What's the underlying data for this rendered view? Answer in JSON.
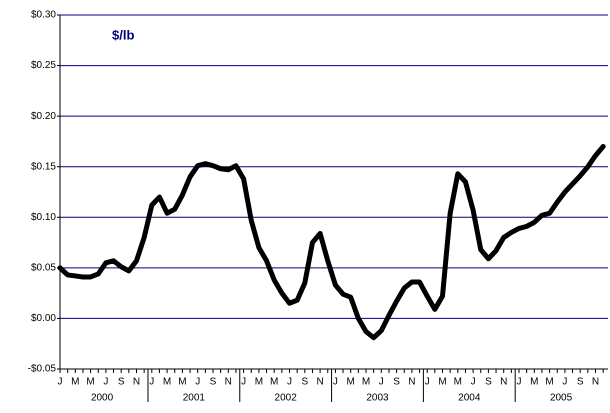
{
  "chart_data": {
    "type": "line",
    "annotation": "$/lb",
    "categories": [
      "J",
      null,
      "M",
      null,
      "M",
      null,
      "J",
      null,
      "S",
      null,
      "N",
      null,
      "J",
      null,
      "M",
      null,
      "M",
      null,
      "J",
      null,
      "S",
      null,
      "N",
      null,
      "J",
      null,
      "M",
      null,
      "M",
      null,
      "J",
      null,
      "S",
      null,
      "N",
      null,
      "J",
      null,
      "M",
      null,
      "M",
      null,
      "J",
      null,
      "S",
      null,
      "N",
      null,
      "J",
      null,
      "M",
      null,
      "M",
      null,
      "J",
      null,
      "S",
      null,
      "N",
      null,
      "J",
      null,
      "M",
      null,
      "M",
      null,
      "J",
      null,
      "S",
      null,
      "N",
      null
    ],
    "years": [
      "2000",
      "2001",
      "2002",
      "2003",
      "2004",
      "2005"
    ],
    "series": [
      {
        "color": "#000000",
        "values": [
          0.05,
          0.043,
          0.042,
          0.041,
          0.041,
          0.044,
          0.055,
          0.057,
          0.051,
          0.047,
          0.057,
          0.08,
          0.112,
          0.12,
          0.104,
          0.108,
          0.122,
          0.14,
          0.151,
          0.153,
          0.151,
          0.148,
          0.147,
          0.151,
          0.138,
          0.097,
          0.07,
          0.057,
          0.038,
          0.025,
          0.015,
          0.018,
          0.035,
          0.075,
          0.084,
          0.057,
          0.033,
          0.024,
          0.021,
          0.0,
          -0.013,
          -0.019,
          -0.012,
          0.003,
          0.017,
          0.03,
          0.036,
          0.036,
          0.022,
          0.009,
          0.022,
          0.104,
          0.143,
          0.135,
          0.107,
          0.068,
          0.059,
          0.067,
          0.08,
          0.085,
          0.089,
          0.091,
          0.095,
          0.102,
          0.104,
          0.115,
          0.125,
          0.133,
          0.141,
          0.15,
          0.161,
          0.17
        ]
      }
    ],
    "ylim": [
      -0.05,
      0.3
    ],
    "yticks": [
      {
        "value": -0.05,
        "label": "-$0.05"
      },
      {
        "value": 0,
        "label": "$0.00"
      },
      {
        "value": 0.05,
        "label": "$0.05"
      },
      {
        "value": 0.1,
        "label": "$0.10"
      },
      {
        "value": 0.15,
        "label": "$0.15"
      },
      {
        "value": 0.2,
        "label": "$0.20"
      },
      {
        "value": 0.25,
        "label": "$0.25"
      },
      {
        "value": 0.3,
        "label": "$0.30"
      }
    ],
    "grid": true
  }
}
